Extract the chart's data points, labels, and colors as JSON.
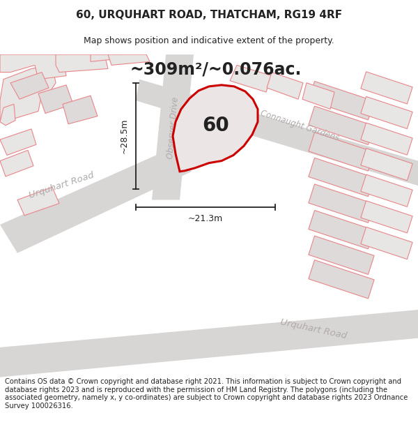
{
  "title": "60, URQUHART ROAD, THATCHAM, RG19 4RF",
  "subtitle": "Map shows position and indicative extent of the property.",
  "area_label": "~309m²/~0.076ac.",
  "property_number": "60",
  "dim_width": "~21.3m",
  "dim_height": "~28.5m",
  "footer": "Contains OS data © Crown copyright and database right 2021. This information is subject to Crown copyright and database rights 2023 and is reproduced with the permission of HM Land Registry. The polygons (including the associated geometry, namely x, y co-ordinates) are subject to Crown copyright and database rights 2023 Ordnance Survey 100026316.",
  "bg_color": "#ffffff",
  "map_bg": "#f2efef",
  "road_fill": "#e6e2e2",
  "building_fill": "#e8e5e5",
  "building_fill2": "#dedad9",
  "pink": "#e8868a",
  "highlight_fill": "#ebe5e5",
  "highlight_stroke": "#cc0000",
  "road_grey": "#d8d5d5",
  "road_label": "#b0aaaa",
  "text_color": "#222222",
  "title_fontsize": 11,
  "subtitle_fontsize": 9,
  "area_fontsize": 17,
  "prop_num_fontsize": 20,
  "road_fontsize": 10,
  "footer_fontsize": 7.2
}
